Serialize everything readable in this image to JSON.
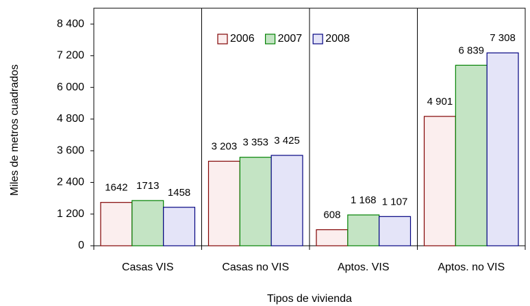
{
  "chart_data": {
    "type": "bar",
    "xlabel": "Tipos de vivienda",
    "ylabel": "Miles de metros cuadrados",
    "categories": [
      "Casas VIS",
      "Casas no VIS",
      "Aptos. VIS",
      "Aptos. no VIS"
    ],
    "series": [
      {
        "name": "2006",
        "color": "#fbeeee",
        "edgecolor": "#800000",
        "values": [
          1642,
          3203,
          608,
          4901
        ],
        "value_labels": [
          "1642",
          "3 203",
          "608",
          "4 901"
        ]
      },
      {
        "name": "2007",
        "color": "#c4e4c4",
        "edgecolor": "#008000",
        "values": [
          1713,
          3353,
          1168,
          6839
        ],
        "value_labels": [
          "1713",
          "3 353",
          "1 168",
          "6 839"
        ]
      },
      {
        "name": "2008",
        "color": "#e4e4f8",
        "edgecolor": "#000080",
        "values": [
          1458,
          3425,
          1107,
          7308
        ],
        "value_labels": [
          "1458",
          "3 425",
          "1 107",
          "7 308"
        ]
      }
    ],
    "ylim": [
      0,
      9000
    ],
    "yticks": [
      0,
      {
        "value": 1200,
        "label": "1 200"
      },
      {
        "value": 2400,
        "label": "2 400"
      },
      {
        "value": 3600,
        "label": "3 600"
      },
      {
        "value": 4800,
        "label": "4 800"
      },
      {
        "value": 6000,
        "label": "6 000"
      },
      {
        "value": 7200,
        "label": "7 200"
      },
      {
        "value": 8400,
        "label": "8 400"
      }
    ],
    "legend": "upper center"
  }
}
